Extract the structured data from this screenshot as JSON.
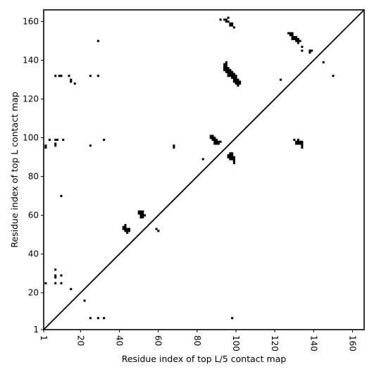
{
  "chart_data": {
    "type": "heatmap",
    "title": "",
    "xlabel": "Residue index of top L/5 contact map",
    "ylabel": "Residue index of top L contact map",
    "xlim": [
      1,
      166
    ],
    "ylim": [
      1,
      166
    ],
    "grid": false,
    "diagonal_line": true,
    "cell_color": "#000000",
    "x_ticks": [
      1,
      20,
      40,
      60,
      80,
      100,
      120,
      140,
      160
    ],
    "x_tick_labels": [
      "1",
      "20",
      "40",
      "60",
      "80",
      "100",
      "120",
      "140",
      "160"
    ],
    "y_ticks": [
      1,
      20,
      40,
      60,
      80,
      100,
      120,
      140,
      160
    ],
    "y_tick_labels": [
      "1",
      "20",
      "40",
      "60",
      "80",
      "100",
      "120",
      "140",
      "160"
    ],
    "upper_contacts": [
      [
        92,
        161
      ],
      [
        94,
        161
      ],
      [
        95,
        161
      ],
      [
        96,
        162
      ],
      [
        95,
        160
      ],
      [
        96,
        160
      ],
      [
        97,
        159
      ],
      [
        98,
        159
      ],
      [
        97,
        158
      ],
      [
        98,
        158
      ],
      [
        99,
        157
      ],
      [
        95,
        139
      ],
      [
        94,
        138
      ],
      [
        95,
        138
      ],
      [
        94,
        137
      ],
      [
        95,
        137
      ],
      [
        94,
        136
      ],
      [
        95,
        136
      ],
      [
        96,
        136
      ],
      [
        94,
        135
      ],
      [
        95,
        135
      ],
      [
        96,
        135
      ],
      [
        97,
        135
      ],
      [
        95,
        134
      ],
      [
        96,
        134
      ],
      [
        97,
        134
      ],
      [
        98,
        134
      ],
      [
        96,
        133
      ],
      [
        97,
        133
      ],
      [
        98,
        133
      ],
      [
        99,
        133
      ],
      [
        96,
        132
      ],
      [
        97,
        132
      ],
      [
        98,
        132
      ],
      [
        99,
        132
      ],
      [
        100,
        132
      ],
      [
        98,
        131
      ],
      [
        99,
        131
      ],
      [
        100,
        131
      ],
      [
        99,
        130
      ],
      [
        100,
        130
      ],
      [
        101,
        130
      ],
      [
        99,
        129
      ],
      [
        100,
        129
      ],
      [
        101,
        129
      ],
      [
        102,
        129
      ],
      [
        100,
        128
      ],
      [
        101,
        128
      ],
      [
        102,
        128
      ],
      [
        101,
        127
      ],
      [
        127,
        154
      ],
      [
        128,
        154
      ],
      [
        129,
        154
      ],
      [
        128,
        153
      ],
      [
        129,
        153
      ],
      [
        129,
        152
      ],
      [
        130,
        152
      ],
      [
        131,
        152
      ],
      [
        129,
        151
      ],
      [
        130,
        151
      ],
      [
        131,
        151
      ],
      [
        132,
        151
      ],
      [
        131,
        150
      ],
      [
        132,
        150
      ],
      [
        133,
        150
      ],
      [
        132,
        149
      ],
      [
        134,
        147
      ],
      [
        134,
        145
      ],
      [
        138,
        145
      ],
      [
        139,
        145
      ],
      [
        138,
        144
      ],
      [
        145,
        139
      ],
      [
        150,
        132
      ],
      [
        123,
        130
      ],
      [
        87,
        101
      ],
      [
        88,
        101
      ],
      [
        87,
        100
      ],
      [
        88,
        100
      ],
      [
        89,
        100
      ],
      [
        88,
        99
      ],
      [
        89,
        99
      ],
      [
        90,
        99
      ],
      [
        89,
        98
      ],
      [
        90,
        98
      ],
      [
        91,
        98
      ],
      [
        92,
        98
      ],
      [
        89,
        97
      ],
      [
        90,
        97
      ],
      [
        91,
        97
      ],
      [
        97,
        92
      ],
      [
        98,
        92
      ],
      [
        96,
        91
      ],
      [
        97,
        91
      ],
      [
        98,
        91
      ],
      [
        96,
        90
      ],
      [
        97,
        90
      ],
      [
        98,
        90
      ],
      [
        99,
        90
      ],
      [
        97,
        89
      ],
      [
        98,
        89
      ],
      [
        99,
        89
      ],
      [
        99,
        88
      ],
      [
        99,
        87
      ],
      [
        130,
        99
      ],
      [
        132,
        99
      ],
      [
        131,
        98
      ],
      [
        132,
        98
      ],
      [
        133,
        98
      ],
      [
        134,
        98
      ],
      [
        131,
        97
      ],
      [
        132,
        97
      ],
      [
        133,
        97
      ],
      [
        134,
        97
      ],
      [
        134,
        96
      ],
      [
        134,
        95
      ],
      [
        68,
        96
      ],
      [
        68,
        95
      ],
      [
        83,
        89
      ],
      [
        98,
        7
      ]
    ],
    "lower_contacts": [
      [
        29,
        150
      ],
      [
        7,
        132
      ],
      [
        9,
        132
      ],
      [
        10,
        132
      ],
      [
        14,
        132
      ],
      [
        25,
        132
      ],
      [
        29,
        132
      ],
      [
        15,
        130
      ],
      [
        15,
        129
      ],
      [
        17,
        128
      ],
      [
        4,
        99
      ],
      [
        7,
        99
      ],
      [
        8,
        99
      ],
      [
        11,
        99
      ],
      [
        32,
        99
      ],
      [
        2,
        96
      ],
      [
        2,
        95
      ],
      [
        7,
        97
      ],
      [
        7,
        96
      ],
      [
        25,
        96
      ],
      [
        10,
        70
      ],
      [
        50,
        62
      ],
      [
        51,
        62
      ],
      [
        52,
        62
      ],
      [
        50,
        61
      ],
      [
        51,
        61
      ],
      [
        52,
        61
      ],
      [
        51,
        60
      ],
      [
        52,
        60
      ],
      [
        53,
        60
      ],
      [
        51,
        59
      ],
      [
        52,
        59
      ],
      [
        59,
        53
      ],
      [
        60,
        52
      ],
      [
        43,
        55
      ],
      [
        42,
        54
      ],
      [
        43,
        54
      ],
      [
        42,
        53
      ],
      [
        43,
        53
      ],
      [
        44,
        53
      ],
      [
        45,
        53
      ],
      [
        43,
        52
      ],
      [
        44,
        52
      ],
      [
        45,
        52
      ],
      [
        44,
        51
      ],
      [
        7,
        32
      ],
      [
        7,
        29
      ],
      [
        7,
        28
      ],
      [
        10,
        29
      ],
      [
        2,
        25
      ],
      [
        7,
        25
      ],
      [
        10,
        25
      ],
      [
        15,
        22
      ],
      [
        22,
        16
      ],
      [
        25,
        7
      ],
      [
        29,
        7
      ],
      [
        32,
        7
      ]
    ]
  }
}
